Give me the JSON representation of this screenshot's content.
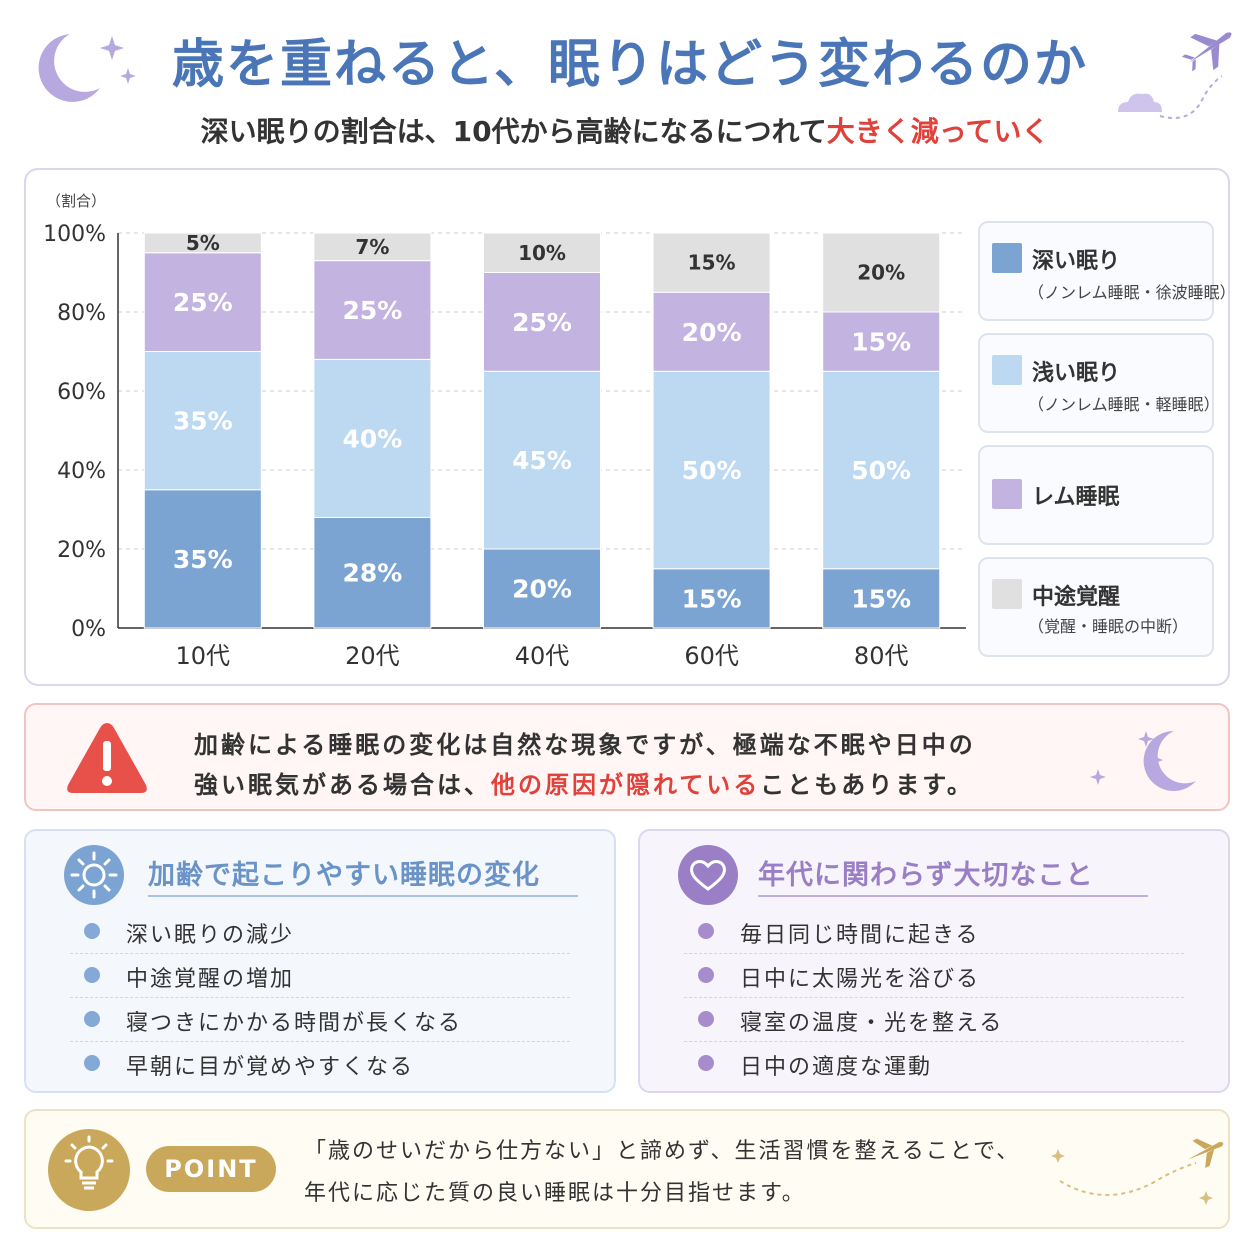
{
  "header": {
    "title": "歳を重ねると、眠りはどう変わるのか",
    "subtitle_prefix": "深い眠りの割合は、10代から高齢になるにつれて",
    "subtitle_highlight": "大きく減っていく"
  },
  "chart_data": {
    "type": "bar",
    "stacked": true,
    "ylabel": "（割合）",
    "ylim": [
      0,
      100
    ],
    "yticks": [
      "0%",
      "20%",
      "40%",
      "60%",
      "80%",
      "100%"
    ],
    "categories": [
      "10代",
      "20代",
      "40代",
      "60代",
      "80代"
    ],
    "grid": "horizontal dashed",
    "legend_position": "right",
    "series": [
      {
        "name": "深い眠り",
        "color": "#7ba4d3",
        "values": [
          35,
          28,
          20,
          15,
          15
        ]
      },
      {
        "name": "浅い眠り",
        "color": "#bcd9f1",
        "values": [
          35,
          40,
          45,
          50,
          50
        ]
      },
      {
        "name": "レム睡眠",
        "color": "#c3b3e0",
        "values": [
          25,
          25,
          25,
          20,
          15
        ]
      },
      {
        "name": "中途覚醒",
        "color": "#e0e0e0",
        "values": [
          5,
          7,
          10,
          15,
          20
        ]
      }
    ],
    "legend": [
      {
        "label": "深い眠り",
        "sub": "（ノンレム睡眠・徐波睡眠）"
      },
      {
        "label": "浅い眠り",
        "sub": "（ノンレム睡眠・軽睡眠）"
      },
      {
        "label": "レム睡眠",
        "sub": ""
      },
      {
        "label": "中途覚醒",
        "sub": "（覚醒・睡眠の中断）"
      }
    ]
  },
  "warning": {
    "line1": "加齢による睡眠の変化は自然な現象ですが、極端な不眠や日中の",
    "line2_prefix": "強い眠気がある場合は、",
    "line2_highlight": "他の原因が隠れている",
    "line2_suffix": "こともあります。"
  },
  "changes": {
    "title": "加齢で起こりやすい睡眠の変化",
    "items": [
      "深い眠りの減少",
      "中途覚醒の増加",
      "寝つきにかかる時間が長くなる",
      "早朝に目が覚めやすくなる"
    ]
  },
  "important": {
    "title": "年代に関わらず大切なこと",
    "items": [
      "毎日同じ時間に起きる",
      "日中に太陽光を浴びる",
      "寝室の温度・光を整える",
      "日中の適度な運動"
    ]
  },
  "point": {
    "badge": "POINT",
    "line1": "「歳のせいだから仕方ない」と諦めず、生活習慣を整えることで、",
    "line2": "年代に応じた質の良い睡眠は十分目指せます。"
  },
  "colors": {
    "title": "#4a76b8",
    "highlight": "#e0413a",
    "deep": "#7ba4d3",
    "light": "#bcd9f1",
    "rem": "#c3b3e0",
    "wake": "#e0e0e0",
    "purple_accent": "#9a7fc6",
    "gold": "#c9a85b"
  },
  "icons": [
    "moon-icon",
    "sparkle-icon",
    "airplane-icon",
    "cloud-icon",
    "warning-icon",
    "sun-icon",
    "heart-icon",
    "lightbulb-icon"
  ]
}
